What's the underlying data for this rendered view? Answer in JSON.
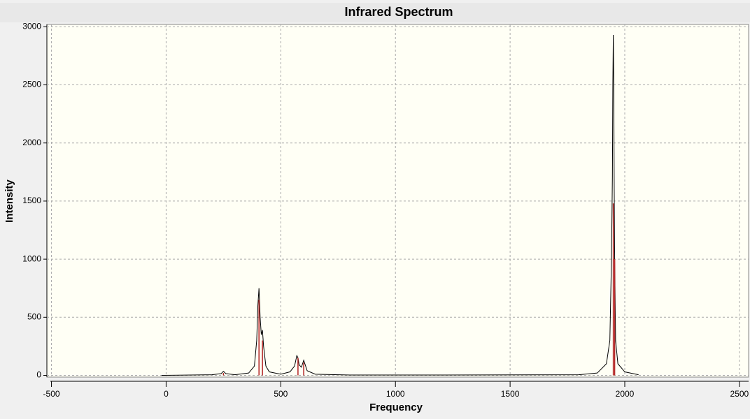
{
  "chart_data": {
    "type": "line",
    "title": "Infrared Spectrum",
    "xlabel": "Frequency",
    "ylabel": "Intensity",
    "xlim": [
      -520,
      2540
    ],
    "ylim": [
      -15,
      3020
    ],
    "xticks": [
      -500,
      0,
      500,
      1000,
      1500,
      2000,
      2500
    ],
    "yticks": [
      0,
      500,
      1000,
      1500,
      2000,
      2500,
      3000
    ],
    "grid": true,
    "series": [
      {
        "mark": "line",
        "color": "#000000",
        "x": [
          -20,
          200,
          240,
          250,
          260,
          300,
          360,
          385,
          395,
          400,
          405,
          410,
          415,
          420,
          425,
          435,
          450,
          500,
          540,
          560,
          570,
          575,
          580,
          590,
          600,
          605,
          615,
          650,
          800,
          1200,
          1800,
          1880,
          1920,
          1935,
          1942,
          1946,
          1948,
          1950,
          1952,
          1954,
          1956,
          1960,
          1970,
          2000,
          2060
        ],
        "values": [
          0,
          5,
          15,
          35,
          15,
          5,
          20,
          80,
          300,
          600,
          750,
          500,
          350,
          390,
          250,
          80,
          30,
          10,
          30,
          80,
          170,
          150,
          90,
          70,
          130,
          100,
          40,
          10,
          3,
          3,
          5,
          20,
          100,
          300,
          1000,
          1700,
          2500,
          2930,
          2500,
          1600,
          1000,
          300,
          100,
          30,
          5
        ]
      },
      {
        "mark": "stick",
        "color": "#b22222",
        "x": [
          250,
          405,
          420,
          575,
          600,
          1950,
          1956
        ],
        "values": [
          20,
          650,
          300,
          150,
          110,
          1480,
          1000
        ]
      }
    ]
  }
}
